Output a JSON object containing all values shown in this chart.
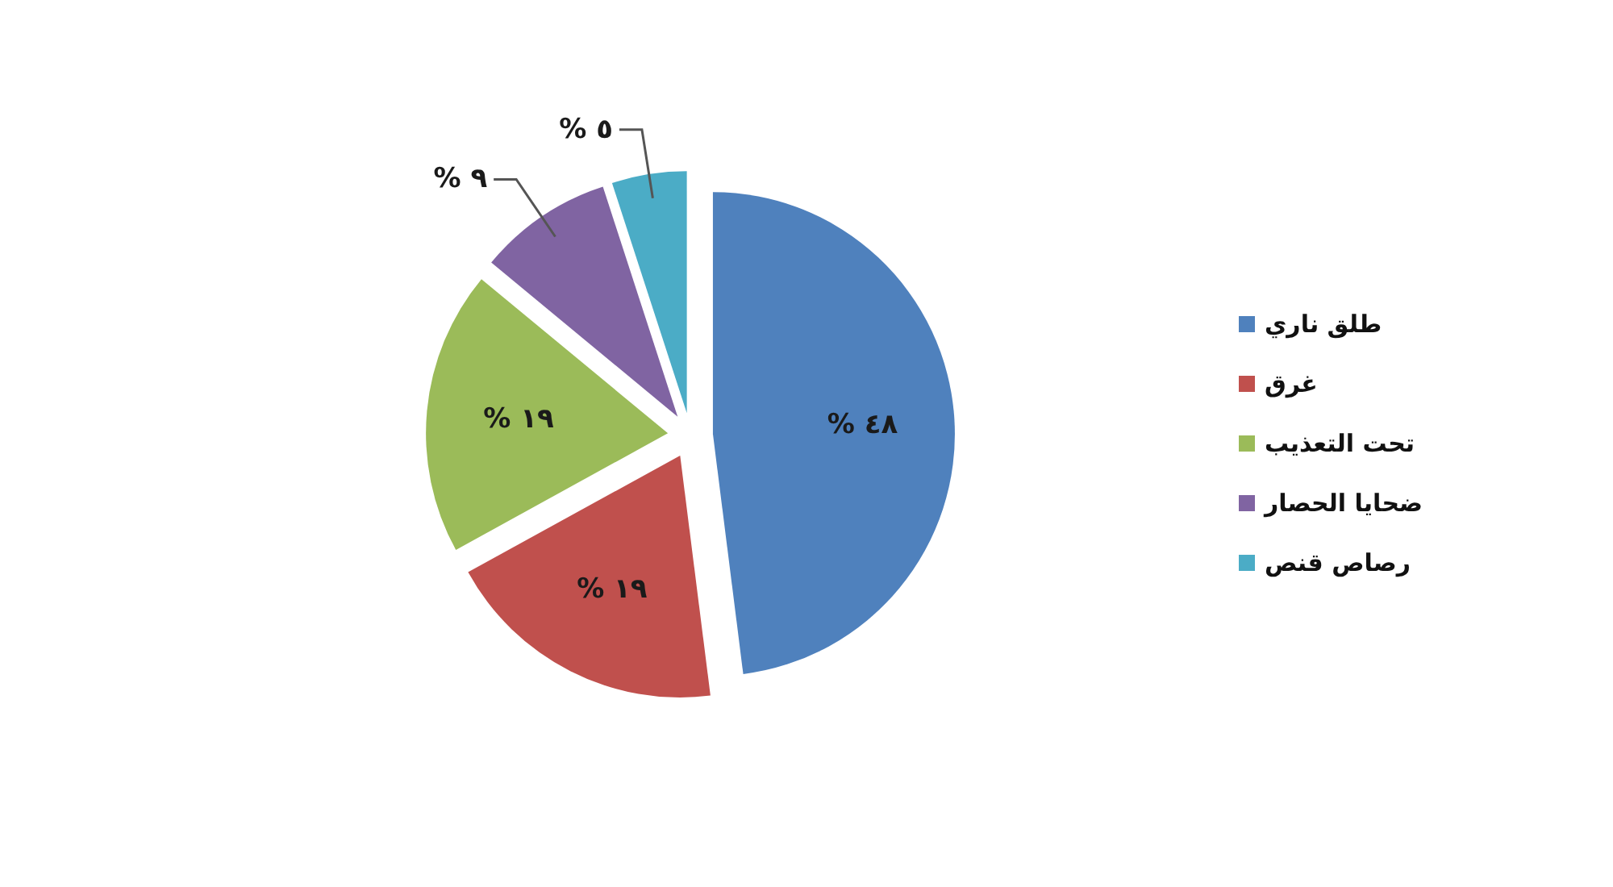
{
  "chart_data": {
    "type": "pie",
    "categories": [
      "طلق ناري",
      "غرق",
      "تحت التعذيب",
      "ضحايا الحصار",
      "رصاص قنص"
    ],
    "values": [
      48,
      19,
      19,
      9,
      5
    ],
    "colors": [
      "#4f81bd",
      "#c0504d",
      "#9bbb59",
      "#8064a2",
      "#4bacc6"
    ],
    "value_labels": [
      "% ٤٨",
      "% ١٩",
      "% ١٩",
      "% ٩",
      "% ٥"
    ],
    "legend": "right"
  }
}
